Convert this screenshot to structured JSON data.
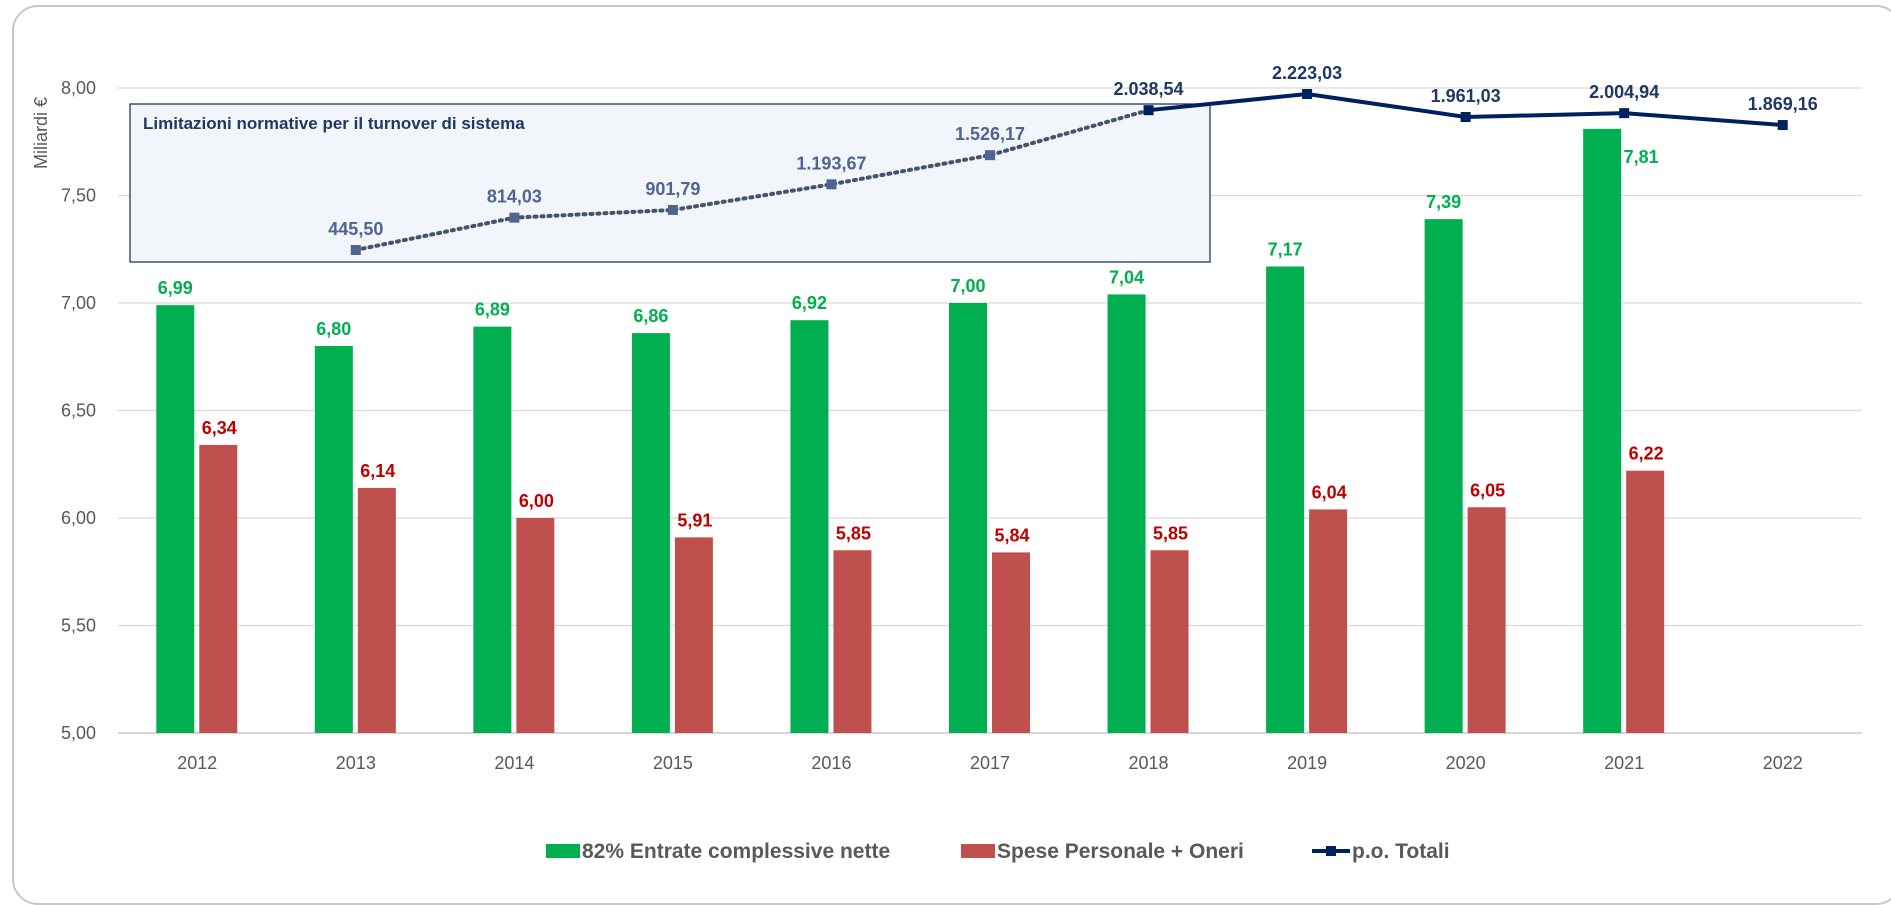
{
  "chart_data": {
    "type": "bar",
    "categories": [
      "2012",
      "2013",
      "2014",
      "2015",
      "2016",
      "2017",
      "2018",
      "2019",
      "2020",
      "2021",
      "2022"
    ],
    "ylabel": "Miliardi €",
    "ylim": [
      5.0,
      8.0
    ],
    "yticks": [
      "5,00",
      "5,50",
      "6,00",
      "6,50",
      "7,00",
      "7,50",
      "8,00"
    ],
    "ytick_values": [
      5.0,
      5.5,
      6.0,
      6.5,
      7.0,
      7.5,
      8.0
    ],
    "grid": true,
    "legend_position": "bottom",
    "series": [
      {
        "name": "82% Entrate complessive nette",
        "kind": "bar",
        "color": "#00B050",
        "values": [
          6.99,
          6.8,
          6.89,
          6.86,
          6.92,
          7.0,
          7.04,
          7.17,
          7.39,
          7.81,
          null
        ],
        "labels": [
          "6,99",
          "6,80",
          "6,89",
          "6,86",
          "6,92",
          "7,00",
          "7,04",
          "7,17",
          "7,39",
          "7,81",
          ""
        ]
      },
      {
        "name": "Spese Personale + Oneri",
        "kind": "bar",
        "color": "#C0504D",
        "values": [
          6.34,
          6.14,
          6.0,
          5.91,
          5.85,
          5.84,
          5.85,
          6.04,
          6.05,
          6.22,
          null
        ],
        "labels": [
          "6,34",
          "6,14",
          "6,00",
          "5,91",
          "5,85",
          "5,84",
          "5,85",
          "6,04",
          "6,05",
          "6,22",
          ""
        ]
      },
      {
        "name": "p.o.  Totali",
        "kind": "line",
        "color": "#002060",
        "values": [
          null,
          445.5,
          814.03,
          901.79,
          1193.67,
          1526.17,
          2038.54,
          2223.03,
          1961.03,
          2004.94,
          1869.16
        ],
        "labels": [
          "",
          "445,50",
          "814,03",
          "901,79",
          "1.193,67",
          "1.526,17",
          "2.038,54",
          "2.223,03",
          "1.961,03",
          "2.004,94",
          "1.869,16"
        ]
      }
    ],
    "annotations": [
      {
        "text": "Limitazioni normative per il  turnover di sistema"
      }
    ]
  }
}
